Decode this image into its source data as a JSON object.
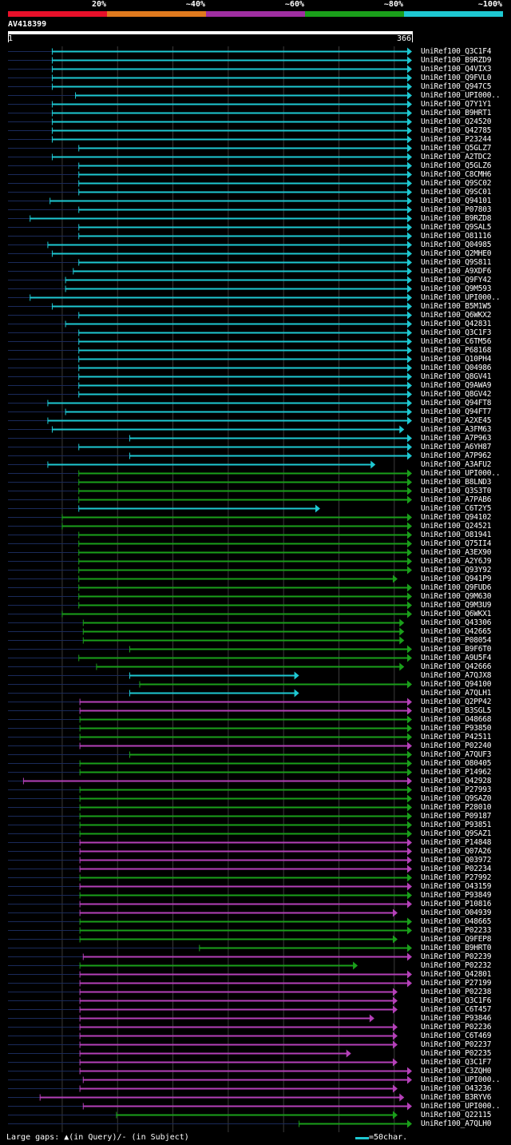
{
  "legend": [
    {
      "label": "20%",
      "color": "#e8102a"
    },
    {
      "label": "~40%",
      "color": "#e07a1e"
    },
    {
      "label": "~60%",
      "color": "#a02fa2"
    },
    {
      "label": "~80%",
      "color": "#1a9f1a"
    },
    {
      "label": "~100%",
      "color": "#1ec8d2"
    }
  ],
  "query": {
    "title": "AV418399",
    "start": "1",
    "end": "366",
    "length": 366
  },
  "footer": {
    "left": "Large gaps: ▲(in Query)/- (in Subject)",
    "right": "=50char."
  },
  "colors": {
    "cyan": "#1ec8d2",
    "green": "#1a9f1a",
    "purple": "#b440b8",
    "navy": "#1a2a5a",
    "grid": "#3a3a3a",
    "gap": "#555555"
  },
  "chart_data": {
    "type": "alignment-overview",
    "title": "AV418399",
    "query_range": [
      1,
      366
    ],
    "scale_note": "=50char.",
    "hits": [
      {
        "name": "UniRef100_Q3C1F4",
        "start": 41,
        "end": 366,
        "color": "cyan"
      },
      {
        "name": "UniRef100_B9RZD9",
        "start": 41,
        "end": 366,
        "color": "cyan"
      },
      {
        "name": "UniRef100_Q4VIX3",
        "start": 41,
        "end": 366,
        "color": "cyan"
      },
      {
        "name": "UniRef100_Q9FVL0",
        "start": 41,
        "end": 366,
        "color": "cyan"
      },
      {
        "name": "UniRef100_Q947C5",
        "start": 41,
        "end": 366,
        "color": "cyan"
      },
      {
        "name": "UniRef100_UPI000..",
        "start": 62,
        "end": 366,
        "color": "cyan"
      },
      {
        "name": "UniRef100_Q7Y1Y1",
        "start": 41,
        "end": 366,
        "color": "cyan"
      },
      {
        "name": "UniRef100_B9HRT1",
        "start": 41,
        "end": 366,
        "color": "cyan"
      },
      {
        "name": "UniRef100_Q24520",
        "start": 41,
        "end": 366,
        "color": "cyan"
      },
      {
        "name": "UniRef100_Q42785",
        "start": 41,
        "end": 366,
        "color": "cyan"
      },
      {
        "name": "UniRef100_P23244",
        "start": 41,
        "end": 366,
        "color": "cyan"
      },
      {
        "name": "UniRef100_Q5GLZ7",
        "start": 65,
        "end": 366,
        "color": "cyan"
      },
      {
        "name": "UniRef100_A2TDC2",
        "start": 41,
        "end": 366,
        "color": "cyan"
      },
      {
        "name": "UniRef100_Q5GLZ6",
        "start": 65,
        "end": 366,
        "color": "cyan"
      },
      {
        "name": "UniRef100_C8CMH6",
        "start": 65,
        "end": 366,
        "color": "cyan"
      },
      {
        "name": "UniRef100_Q9SC02",
        "start": 65,
        "end": 366,
        "color": "cyan"
      },
      {
        "name": "UniRef100_Q9SC01",
        "start": 65,
        "end": 366,
        "color": "cyan"
      },
      {
        "name": "UniRef100_Q94101",
        "start": 39,
        "end": 366,
        "color": "cyan"
      },
      {
        "name": "UniRef100_P07803",
        "start": 65,
        "end": 366,
        "color": "cyan"
      },
      {
        "name": "UniRef100_B9RZD8",
        "start": 21,
        "end": 366,
        "color": "cyan"
      },
      {
        "name": "UniRef100_Q9SAL5",
        "start": 65,
        "end": 366,
        "color": "cyan"
      },
      {
        "name": "UniRef100_O81116",
        "start": 65,
        "end": 366,
        "color": "cyan"
      },
      {
        "name": "UniRef100_Q04985",
        "start": 37,
        "end": 366,
        "color": "cyan"
      },
      {
        "name": "UniRef100_Q2MHE0",
        "start": 41,
        "end": 366,
        "color": "cyan"
      },
      {
        "name": "UniRef100_Q9S811",
        "start": 65,
        "end": 366,
        "color": "cyan"
      },
      {
        "name": "UniRef100_A9XDF6",
        "start": 60,
        "end": 366,
        "color": "cyan"
      },
      {
        "name": "UniRef100_Q9FY42",
        "start": 53,
        "end": 366,
        "color": "cyan"
      },
      {
        "name": "UniRef100_Q9M593",
        "start": 53,
        "end": 366,
        "color": "cyan"
      },
      {
        "name": "UniRef100_UPI000..",
        "start": 21,
        "end": 366,
        "color": "cyan"
      },
      {
        "name": "UniRef100_B5M1W5",
        "start": 41,
        "end": 366,
        "color": "cyan"
      },
      {
        "name": "UniRef100_Q6WKX2",
        "start": 65,
        "end": 366,
        "color": "cyan"
      },
      {
        "name": "UniRef100_Q42831",
        "start": 53,
        "end": 366,
        "color": "cyan"
      },
      {
        "name": "UniRef100_Q3C1F3",
        "start": 65,
        "end": 366,
        "color": "cyan"
      },
      {
        "name": "UniRef100_C6TM56",
        "start": 65,
        "end": 366,
        "color": "cyan"
      },
      {
        "name": "UniRef100_P68168",
        "start": 65,
        "end": 366,
        "color": "cyan"
      },
      {
        "name": "UniRef100_Q10PH4",
        "start": 65,
        "end": 366,
        "color": "cyan"
      },
      {
        "name": "UniRef100_Q04986",
        "start": 65,
        "end": 366,
        "color": "cyan"
      },
      {
        "name": "UniRef100_Q8GV41",
        "start": 65,
        "end": 366,
        "color": "cyan"
      },
      {
        "name": "UniRef100_Q9AWA9",
        "start": 65,
        "end": 366,
        "color": "cyan"
      },
      {
        "name": "UniRef100_Q8GV42",
        "start": 65,
        "end": 366,
        "color": "cyan"
      },
      {
        "name": "UniRef100_Q94FT8",
        "start": 37,
        "end": 366,
        "color": "cyan"
      },
      {
        "name": "UniRef100_Q94FT7",
        "start": 53,
        "end": 366,
        "color": "cyan"
      },
      {
        "name": "UniRef100_A2XE45",
        "start": 37,
        "end": 366,
        "color": "cyan"
      },
      {
        "name": "UniRef100_A3FM63",
        "start": 41,
        "end": 359,
        "color": "cyan"
      },
      {
        "name": "UniRef100_A7P963",
        "start": 111,
        "end": 366,
        "color": "cyan"
      },
      {
        "name": "UniRef100_A6YH87",
        "start": 65,
        "end": 366,
        "color": "cyan"
      },
      {
        "name": "UniRef100_A7P962",
        "start": 111,
        "end": 366,
        "color": "cyan"
      },
      {
        "name": "UniRef100_A3AFU2",
        "start": 37,
        "end": 333,
        "color": "cyan"
      },
      {
        "name": "UniRef100_UPI000..",
        "start": 65,
        "end": 366,
        "color": "green"
      },
      {
        "name": "UniRef100_B8LND3",
        "start": 65,
        "end": 366,
        "color": "green"
      },
      {
        "name": "UniRef100_Q3S3T0",
        "start": 65,
        "end": 366,
        "color": "green"
      },
      {
        "name": "UniRef100_A7PAB6",
        "start": 65,
        "end": 366,
        "color": "green"
      },
      {
        "name": "UniRef100_C6T2Y5",
        "start": 65,
        "end": 283,
        "color": "cyan"
      },
      {
        "name": "UniRef100_Q94102",
        "start": 50,
        "end": 366,
        "color": "green"
      },
      {
        "name": "UniRef100_Q24521",
        "start": 50,
        "end": 366,
        "color": "green"
      },
      {
        "name": "UniRef100_O81941",
        "start": 65,
        "end": 366,
        "color": "green"
      },
      {
        "name": "UniRef100_Q75II4",
        "start": 65,
        "end": 366,
        "color": "green"
      },
      {
        "name": "UniRef100_A3EX90",
        "start": 65,
        "end": 366,
        "color": "green"
      },
      {
        "name": "UniRef100_A2Y6J9",
        "start": 65,
        "end": 366,
        "color": "green"
      },
      {
        "name": "UniRef100_Q93Y92",
        "start": 65,
        "end": 366,
        "color": "green"
      },
      {
        "name": "UniRef100_Q941P9",
        "start": 65,
        "end": 353,
        "color": "green"
      },
      {
        "name": "UniRef100_Q9FUD6",
        "start": 65,
        "end": 366,
        "color": "green"
      },
      {
        "name": "UniRef100_Q9M630",
        "start": 65,
        "end": 366,
        "color": "green"
      },
      {
        "name": "UniRef100_Q9M3U9",
        "start": 65,
        "end": 366,
        "color": "green"
      },
      {
        "name": "UniRef100_Q6WKX1",
        "start": 50,
        "end": 366,
        "color": "green"
      },
      {
        "name": "UniRef100_Q43306",
        "start": 69,
        "end": 359,
        "color": "green"
      },
      {
        "name": "UniRef100_Q42665",
        "start": 69,
        "end": 359,
        "color": "green"
      },
      {
        "name": "UniRef100_P08054",
        "start": 69,
        "end": 359,
        "color": "green"
      },
      {
        "name": "UniRef100_B9F6T0",
        "start": 111,
        "end": 366,
        "color": "green"
      },
      {
        "name": "UniRef100_A9U5F4",
        "start": 65,
        "end": 366,
        "color": "green"
      },
      {
        "name": "UniRef100_Q42666",
        "start": 81,
        "end": 359,
        "color": "green"
      },
      {
        "name": "UniRef100_A7QJX8",
        "start": 111,
        "end": 264,
        "color": "cyan"
      },
      {
        "name": "UniRef100_Q94100",
        "start": 120,
        "end": 366,
        "color": "green"
      },
      {
        "name": "UniRef100_A7QLH1",
        "start": 111,
        "end": 264,
        "color": "cyan"
      },
      {
        "name": "UniRef100_Q2PP42",
        "start": 66,
        "end": 366,
        "color": "purple"
      },
      {
        "name": "UniRef100_B3SGL5",
        "start": 66,
        "end": 366,
        "color": "purple"
      },
      {
        "name": "UniRef100_O48668",
        "start": 66,
        "end": 366,
        "color": "green"
      },
      {
        "name": "UniRef100_P93850",
        "start": 66,
        "end": 366,
        "color": "green"
      },
      {
        "name": "UniRef100_P42511",
        "start": 66,
        "end": 366,
        "color": "green"
      },
      {
        "name": "UniRef100_P02240",
        "start": 66,
        "end": 366,
        "color": "purple"
      },
      {
        "name": "UniRef100_A7QUF3",
        "start": 111,
        "end": 366,
        "color": "green"
      },
      {
        "name": "UniRef100_O80405",
        "start": 66,
        "end": 366,
        "color": "green"
      },
      {
        "name": "UniRef100_P14962",
        "start": 66,
        "end": 366,
        "color": "green"
      },
      {
        "name": "UniRef100_Q42928",
        "start": 15,
        "end": 366,
        "color": "purple"
      },
      {
        "name": "UniRef100_P27993",
        "start": 66,
        "end": 366,
        "color": "green"
      },
      {
        "name": "UniRef100_Q9SAZ0",
        "start": 66,
        "end": 366,
        "color": "green"
      },
      {
        "name": "UniRef100_P28010",
        "start": 66,
        "end": 366,
        "color": "green"
      },
      {
        "name": "UniRef100_P09187",
        "start": 66,
        "end": 366,
        "color": "green"
      },
      {
        "name": "UniRef100_P93851",
        "start": 66,
        "end": 366,
        "color": "green"
      },
      {
        "name": "UniRef100_Q9SAZ1",
        "start": 66,
        "end": 366,
        "color": "green"
      },
      {
        "name": "UniRef100_P14848",
        "start": 66,
        "end": 366,
        "color": "purple"
      },
      {
        "name": "UniRef100_Q07A26",
        "start": 66,
        "end": 366,
        "color": "purple"
      },
      {
        "name": "UniRef100_Q03972",
        "start": 66,
        "end": 366,
        "color": "purple"
      },
      {
        "name": "UniRef100_P02234",
        "start": 66,
        "end": 366,
        "color": "purple"
      },
      {
        "name": "UniRef100_P27992",
        "start": 66,
        "end": 366,
        "color": "green"
      },
      {
        "name": "UniRef100_O43159",
        "start": 66,
        "end": 366,
        "color": "purple"
      },
      {
        "name": "UniRef100_P93849",
        "start": 66,
        "end": 366,
        "color": "green"
      },
      {
        "name": "UniRef100_P10816",
        "start": 66,
        "end": 366,
        "color": "purple"
      },
      {
        "name": "UniRef100_O04939",
        "start": 66,
        "end": 353,
        "color": "purple"
      },
      {
        "name": "UniRef100_O48665",
        "start": 66,
        "end": 366,
        "color": "green"
      },
      {
        "name": "UniRef100_P02233",
        "start": 66,
        "end": 366,
        "color": "green"
      },
      {
        "name": "UniRef100_Q9FEP8",
        "start": 66,
        "end": 353,
        "color": "green"
      },
      {
        "name": "UniRef100_B9HRT0",
        "start": 174,
        "end": 366,
        "color": "green"
      },
      {
        "name": "UniRef100_P02239",
        "start": 69,
        "end": 366,
        "color": "purple"
      },
      {
        "name": "UniRef100_P02232",
        "start": 66,
        "end": 317,
        "color": "green"
      },
      {
        "name": "UniRef100_Q42801",
        "start": 66,
        "end": 366,
        "color": "purple"
      },
      {
        "name": "UniRef100_P27199",
        "start": 66,
        "end": 366,
        "color": "purple"
      },
      {
        "name": "UniRef100_P02238",
        "start": 66,
        "end": 353,
        "color": "purple"
      },
      {
        "name": "UniRef100_Q3C1F6",
        "start": 66,
        "end": 353,
        "color": "purple"
      },
      {
        "name": "UniRef100_C6T457",
        "start": 66,
        "end": 353,
        "color": "purple"
      },
      {
        "name": "UniRef100_P93846",
        "start": 66,
        "end": 332,
        "color": "purple"
      },
      {
        "name": "UniRef100_P02236",
        "start": 66,
        "end": 353,
        "color": "purple"
      },
      {
        "name": "UniRef100_C6T469",
        "start": 66,
        "end": 353,
        "color": "purple"
      },
      {
        "name": "UniRef100_P02237",
        "start": 66,
        "end": 353,
        "color": "purple"
      },
      {
        "name": "UniRef100_P02235",
        "start": 66,
        "end": 311,
        "color": "purple"
      },
      {
        "name": "UniRef100_Q3C1F7",
        "start": 66,
        "end": 353,
        "color": "purple"
      },
      {
        "name": "UniRef100_C3ZQH0",
        "start": 66,
        "end": 366,
        "color": "purple"
      },
      {
        "name": "UniRef100_UPI000..",
        "start": 69,
        "end": 366,
        "color": "purple"
      },
      {
        "name": "UniRef100_O43236",
        "start": 66,
        "end": 353,
        "color": "purple"
      },
      {
        "name": "UniRef100_B3RYV6",
        "start": 30,
        "end": 359,
        "color": "purple"
      },
      {
        "name": "UniRef100_UPI000..",
        "start": 69,
        "end": 366,
        "color": "purple"
      },
      {
        "name": "UniRef100_Q22115",
        "start": 99,
        "end": 353,
        "color": "green"
      },
      {
        "name": "UniRef100_A7QLH0",
        "start": 264,
        "end": 366,
        "color": "green"
      }
    ]
  }
}
